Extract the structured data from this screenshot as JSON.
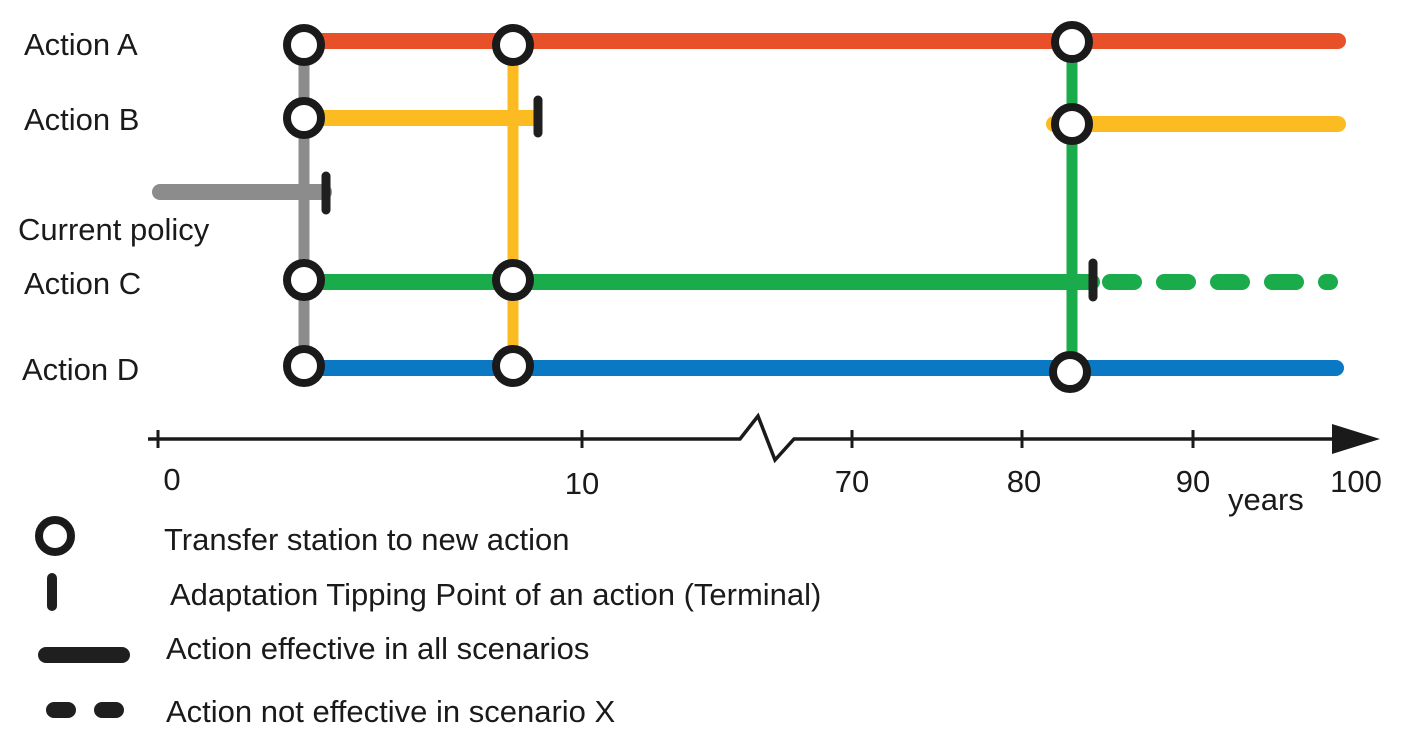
{
  "actions": [
    {
      "id": "a",
      "label": "Action A",
      "color": "#e8502a"
    },
    {
      "id": "b",
      "label": "Action B",
      "color": "#fbbb21"
    },
    {
      "id": "current",
      "label": "Current policy",
      "color": "#8c8c8c"
    },
    {
      "id": "c",
      "label": "Action C",
      "color": "#1aab4b"
    },
    {
      "id": "d",
      "label": "Action D",
      "color": "#0a78c2"
    }
  ],
  "axis": {
    "ticks": [
      "0",
      "10",
      "70",
      "80",
      "90",
      "100"
    ],
    "unit_label": "years",
    "break_between": [
      "10",
      "70"
    ]
  },
  "legend": [
    {
      "symbol": "transfer-station",
      "text": "Transfer station to new action"
    },
    {
      "symbol": "tipping-point",
      "text": "Adaptation Tipping Point of an action (Terminal)"
    },
    {
      "symbol": "solid-line",
      "text": "Action effective in all scenarios"
    },
    {
      "symbol": "dashed-line",
      "text": "Action not effective in scenario X"
    }
  ]
}
